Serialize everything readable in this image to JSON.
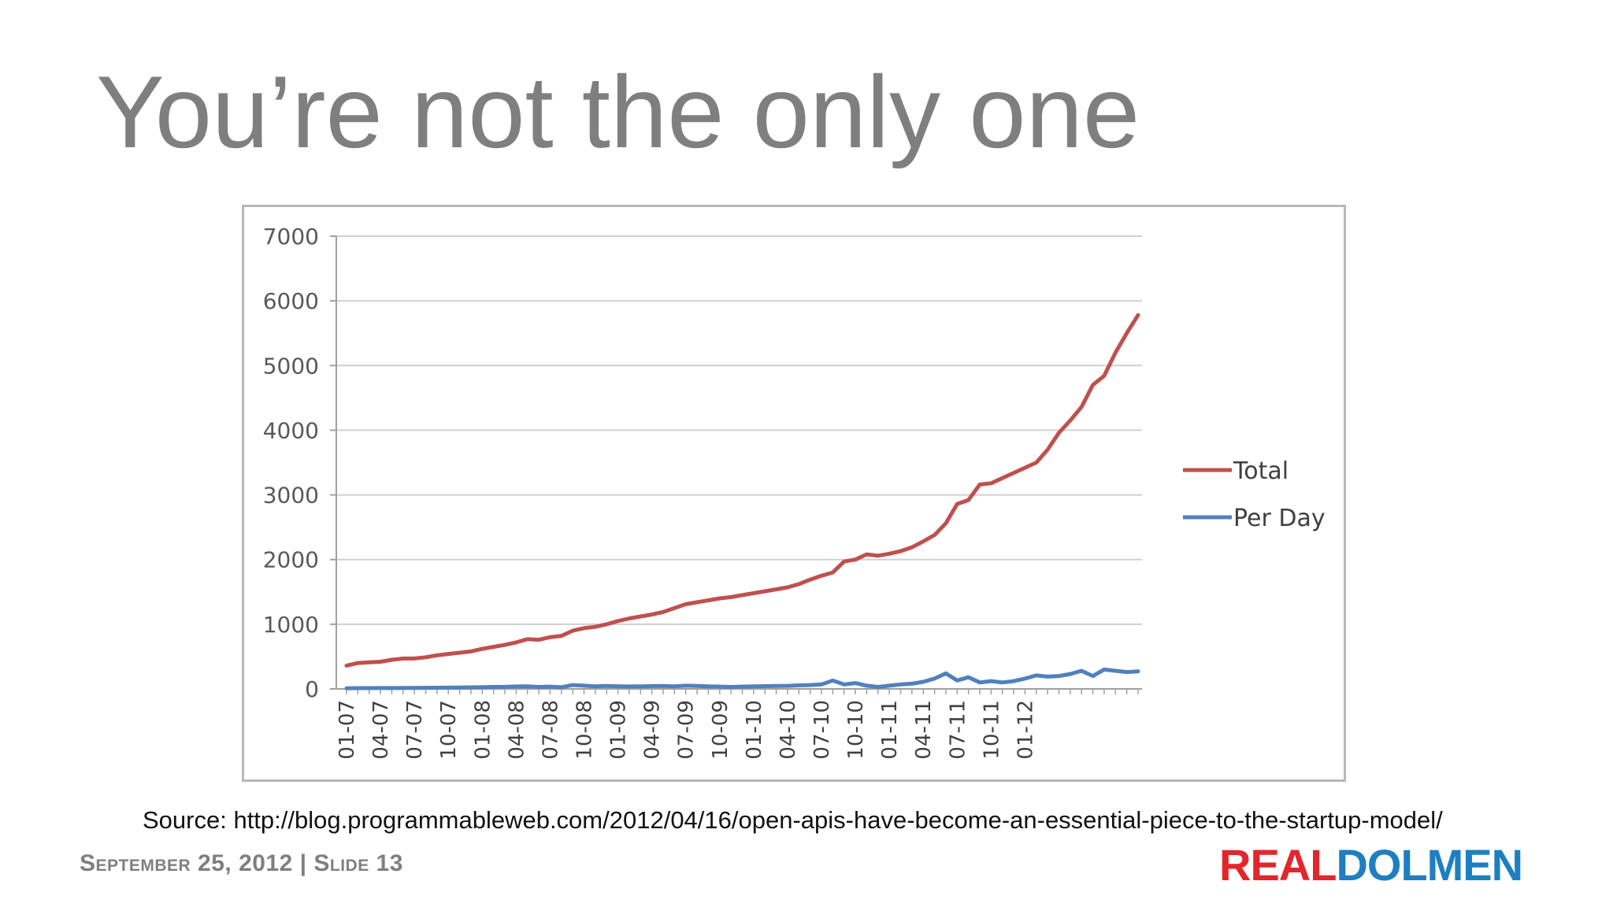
{
  "slide": {
    "title": "You’re not the only one",
    "source": "Source: http://blog.programmableweb.com/2012/04/16/open-apis-have-become-an-essential-piece-to-the-startup-model/",
    "footer": "September 25, 2012 | Slide 13",
    "logo": {
      "part1": "REAL",
      "part2": "DOLMEN",
      "color1": "#e3262b",
      "color2": "#1e7fc0"
    }
  },
  "chart_data": {
    "type": "line",
    "title": "",
    "xlabel": "",
    "ylabel": "",
    "ylim": [
      0,
      7000
    ],
    "yticks": [
      0,
      1000,
      2000,
      3000,
      4000,
      5000,
      6000,
      7000
    ],
    "grid": true,
    "legend": "right",
    "x_tick_labels": [
      "01-07",
      "04-07",
      "07-07",
      "10-07",
      "01-08",
      "04-08",
      "07-08",
      "10-08",
      "01-09",
      "04-09",
      "07-09",
      "10-09",
      "01-10",
      "04-10",
      "07-10",
      "10-10",
      "01-11",
      "04-11",
      "07-11",
      "10-11",
      "01-12"
    ],
    "series": [
      {
        "name": "Total",
        "color": "#c0504d",
        "values": [
          360,
          400,
          410,
          420,
          450,
          470,
          470,
          490,
          520,
          540,
          560,
          580,
          620,
          650,
          680,
          720,
          770,
          760,
          800,
          820,
          900,
          940,
          960,
          1000,
          1050,
          1090,
          1120,
          1150,
          1190,
          1250,
          1310,
          1340,
          1370,
          1400,
          1420,
          1450,
          1480,
          1510,
          1540,
          1570,
          1620,
          1690,
          1750,
          1800,
          1970,
          2000,
          2080,
          2060,
          2090,
          2130,
          2190,
          2280,
          2380,
          2560,
          2860,
          2920,
          3160,
          3180,
          3260,
          3340,
          3420,
          3500,
          3700,
          3960,
          4150,
          4360,
          4700,
          4840,
          5200,
          5500,
          5780
        ]
      },
      {
        "name": "Per Day",
        "color": "#4f81bd",
        "values": [
          10,
          12,
          12,
          14,
          14,
          15,
          16,
          17,
          18,
          20,
          22,
          24,
          26,
          30,
          32,
          38,
          40,
          30,
          35,
          25,
          60,
          50,
          40,
          45,
          40,
          38,
          40,
          42,
          45,
          40,
          50,
          45,
          40,
          35,
          30,
          35,
          40,
          42,
          45,
          48,
          55,
          60,
          70,
          130,
          70,
          90,
          50,
          30,
          50,
          70,
          80,
          110,
          160,
          240,
          130,
          180,
          100,
          120,
          100,
          120,
          160,
          210,
          190,
          200,
          230,
          280,
          200,
          300,
          280,
          260,
          270
        ]
      }
    ]
  }
}
